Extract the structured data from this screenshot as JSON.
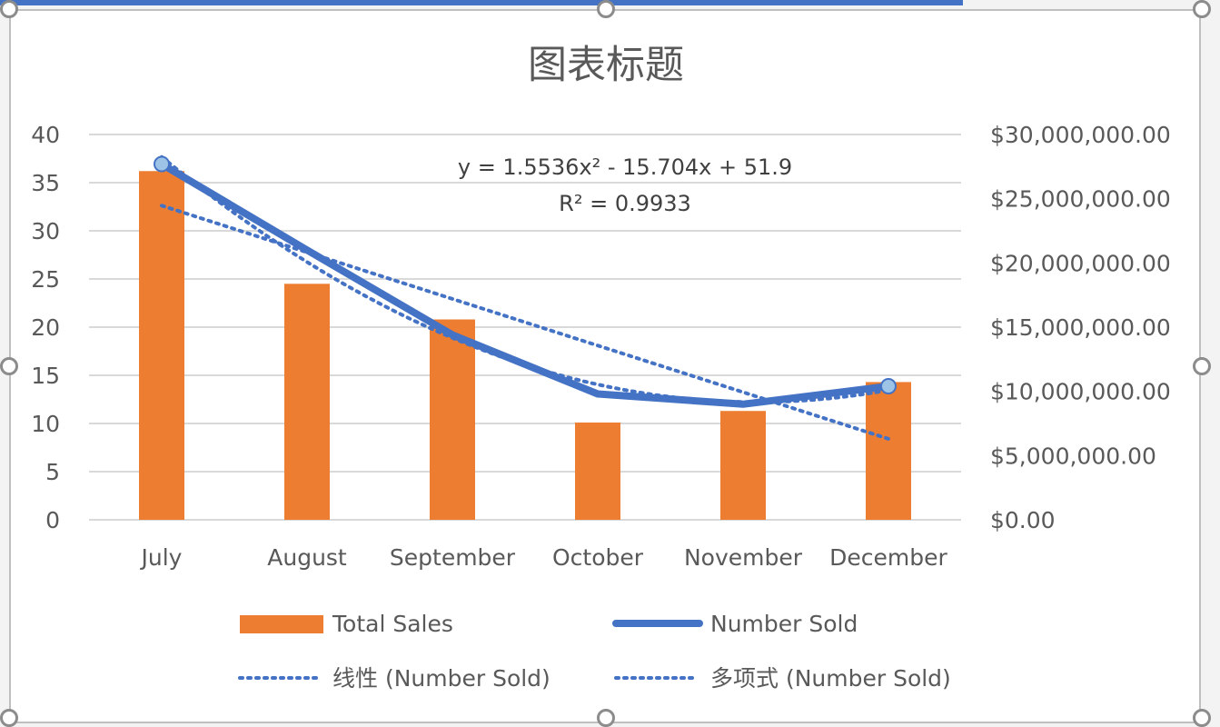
{
  "chart_data": {
    "type": "bar",
    "title": "图表标题",
    "categories": [
      "July",
      "August",
      "September",
      "October",
      "November",
      "December"
    ],
    "left_axis": {
      "ticks": [
        "40",
        "35",
        "30",
        "25",
        "20",
        "15",
        "10",
        "5",
        "0"
      ],
      "ylim": [
        0,
        40
      ]
    },
    "right_axis": {
      "ticks": [
        "$30,000,000.00",
        "$25,000,000.00",
        "$20,000,000.00",
        "$15,000,000.00",
        "$10,000,000.00",
        "$5,000,000.00",
        "$0.00"
      ],
      "ylim": [
        0,
        30000000
      ]
    },
    "series": [
      {
        "name": "Total Sales",
        "type": "bar",
        "axis": "left",
        "color": "#ed7d31",
        "values": [
          36.2,
          24.5,
          20.8,
          10.1,
          11.3,
          14.3
        ]
      },
      {
        "name": "Number Sold",
        "type": "line",
        "axis": "right",
        "color": "#4472c4",
        "values": [
          27700000,
          21000000,
          14400000,
          9800000,
          9000000,
          10400000
        ]
      }
    ],
    "trendlines": [
      {
        "name": "线性 (Number Sold)",
        "kind": "linear",
        "color": "#4472c4"
      },
      {
        "name": "多项式 (Number Sold)",
        "kind": "polynomial",
        "order": 2,
        "color": "#4472c4"
      }
    ],
    "equation": "y = 1.5536x² - 15.704x + 51.9",
    "r_squared": "R² = 0.9933",
    "grid": true,
    "legend_position": "bottom"
  }
}
